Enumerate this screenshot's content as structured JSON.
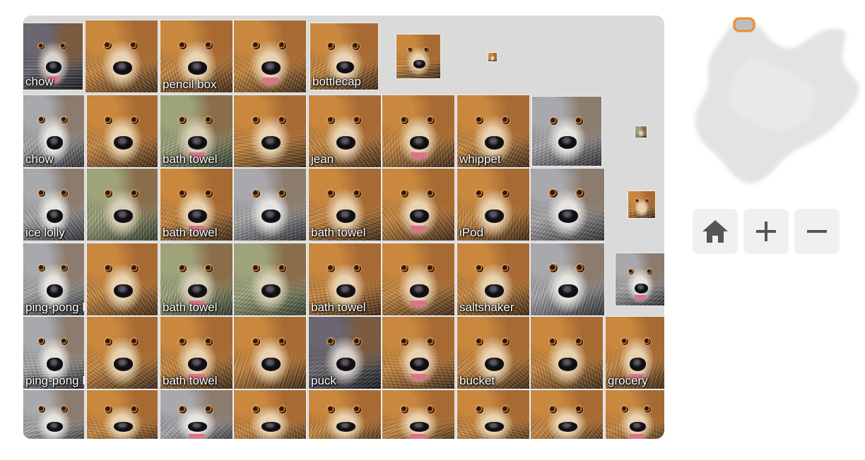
{
  "atlas": {
    "tiles": [
      {
        "label": "chow",
        "palette": "dark"
      },
      {
        "label": "",
        "palette": "warm"
      },
      {
        "label": "pencil box",
        "palette": "warm"
      },
      {
        "label": "",
        "palette": "warm"
      },
      {
        "label": "bottlecap",
        "palette": "warm"
      },
      {
        "label": "",
        "palette": "warm"
      },
      {
        "label": "",
        "palette": "warm"
      },
      {
        "label": "chow",
        "palette": "grey"
      },
      {
        "label": "",
        "palette": "warm"
      },
      {
        "label": "bath towel",
        "palette": "green"
      },
      {
        "label": "",
        "palette": "warm"
      },
      {
        "label": "jean",
        "palette": "warm"
      },
      {
        "label": "",
        "palette": "warm"
      },
      {
        "label": "whippet",
        "palette": "warm"
      },
      {
        "label": "",
        "palette": "grey"
      },
      {
        "label": "",
        "palette": "green"
      },
      {
        "label": "ice lolly",
        "palette": "grey"
      },
      {
        "label": "",
        "palette": "green"
      },
      {
        "label": "bath towel",
        "palette": "warm"
      },
      {
        "label": "",
        "palette": "grey"
      },
      {
        "label": "bath towel",
        "palette": "warm"
      },
      {
        "label": "",
        "palette": "warm"
      },
      {
        "label": "iPod",
        "palette": "warm"
      },
      {
        "label": "",
        "palette": "grey"
      },
      {
        "label": "",
        "palette": "warm"
      },
      {
        "label": "ping-pong ball",
        "palette": "grey"
      },
      {
        "label": "",
        "palette": "warm"
      },
      {
        "label": "bath towel",
        "palette": "green"
      },
      {
        "label": "",
        "palette": "green"
      },
      {
        "label": "bath towel",
        "palette": "warm"
      },
      {
        "label": "",
        "palette": "warm"
      },
      {
        "label": "saltshaker",
        "palette": "warm"
      },
      {
        "label": "",
        "palette": "grey"
      },
      {
        "label": "",
        "palette": "grey"
      },
      {
        "label": "ping-pong ball",
        "palette": "grey"
      },
      {
        "label": "",
        "palette": "warm"
      },
      {
        "label": "bath towel",
        "palette": "warm"
      },
      {
        "label": "",
        "palette": "warm"
      },
      {
        "label": "puck",
        "palette": "dark"
      },
      {
        "label": "",
        "palette": "warm"
      },
      {
        "label": "bucket",
        "palette": "warm"
      },
      {
        "label": "",
        "palette": "warm"
      },
      {
        "label": "grocery",
        "palette": "warm"
      },
      {
        "label": "",
        "palette": "grey"
      },
      {
        "label": "",
        "palette": "warm"
      },
      {
        "label": "",
        "palette": "grey"
      },
      {
        "label": "",
        "palette": "warm"
      },
      {
        "label": "",
        "palette": "warm"
      },
      {
        "label": "",
        "palette": "warm"
      },
      {
        "label": "",
        "palette": "warm"
      },
      {
        "label": "",
        "palette": "warm"
      },
      {
        "label": "",
        "palette": "warm"
      }
    ]
  },
  "minimap": {
    "viewport_color": "#f08a24"
  },
  "controls": {
    "home_icon": "home-icon",
    "zoom_in_icon": "plus-icon",
    "zoom_out_icon": "minus-icon"
  },
  "colors": {
    "atlas_background": "#dadada",
    "control_background": "#f0f0f0",
    "icon_color": "#555555",
    "minimap_accent": "#f08a24"
  }
}
